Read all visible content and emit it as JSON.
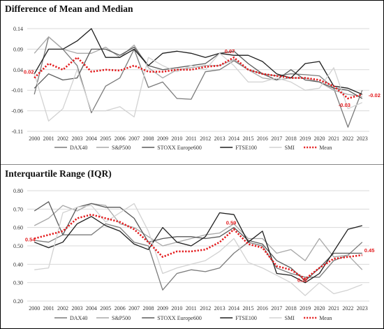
{
  "colors": {
    "DAX40": "#7b7b7b",
    "S&P500": "#a8a8a8",
    "STOXX Europe600": "#5a5a5a",
    "FTSE100": "#1e1e1e",
    "SMI": "#d2d2d2",
    "Mean": "#e31a1c"
  },
  "chart_data": [
    {
      "type": "line",
      "title": "Difference of Mean and Median",
      "x": [
        "2000",
        "2001",
        "2002",
        "2003",
        "2004",
        "2005",
        "2006",
        "2007",
        "2008",
        "2009",
        "2010",
        "2011",
        "2012",
        "2013",
        "2014",
        "2015",
        "2016",
        "2017",
        "2018",
        "2019",
        "2020",
        "2021",
        "2022",
        "2023"
      ],
      "y_ticks": [
        "0.14",
        "0.09",
        "0.04",
        "-0.01",
        "-0.06",
        "-0.11"
      ],
      "ylim": [
        -0.11,
        0.14
      ],
      "grid": true,
      "legend_position": "bottom",
      "series": [
        {
          "name": "DAX40",
          "values": [
            -0.02,
            0.12,
            0.09,
            0.05,
            -0.065,
            0.0,
            0.02,
            0.09,
            -0.003,
            0.01,
            -0.03,
            -0.032,
            0.035,
            0.04,
            0.062,
            0.04,
            0.03,
            0.025,
            0.03,
            0.028,
            0.025,
            -0.005,
            -0.1,
            -0.01
          ]
        },
        {
          "name": "S&P500",
          "values": [
            0.08,
            0.12,
            0.09,
            0.08,
            0.08,
            0.095,
            0.07,
            0.1,
            0.045,
            0.02,
            0.04,
            0.045,
            0.05,
            0.05,
            0.065,
            0.04,
            0.02,
            0.015,
            0.02,
            0.02,
            0.01,
            -0.01,
            -0.02,
            -0.025
          ]
        },
        {
          "name": "STOXX Europe600",
          "values": [
            -0.005,
            0.03,
            0.015,
            0.02,
            0.09,
            0.09,
            0.075,
            0.095,
            0.05,
            0.04,
            0.045,
            0.05,
            0.055,
            0.08,
            0.085,
            0.055,
            0.03,
            0.015,
            0.04,
            0.015,
            0.01,
            -0.005,
            -0.01,
            -0.03
          ]
        },
        {
          "name": "FTSE100",
          "values": [
            0.03,
            0.09,
            0.09,
            0.11,
            0.14,
            0.07,
            0.07,
            0.09,
            0.05,
            0.08,
            0.085,
            0.08,
            0.07,
            0.08,
            0.075,
            0.075,
            0.06,
            0.03,
            0.02,
            0.055,
            0.06,
            0.0,
            -0.005,
            -0.02
          ]
        },
        {
          "name": "SMI",
          "values": [
            0.03,
            -0.085,
            -0.055,
            0.04,
            -0.06,
            -0.06,
            -0.05,
            -0.075,
            0.07,
            0.05,
            0.035,
            0.05,
            0.04,
            0.08,
            0.05,
            0.01,
            0.01,
            0.02,
            0.01,
            -0.01,
            -0.005,
            0.045,
            -0.055,
            -0.04
          ]
        },
        {
          "name": "Mean",
          "values": [
            0.02,
            0.055,
            0.04,
            0.07,
            0.035,
            0.04,
            0.038,
            0.05,
            0.035,
            0.035,
            0.04,
            0.04,
            0.047,
            0.05,
            0.07,
            0.04,
            0.03,
            0.025,
            0.02,
            0.02,
            0.015,
            0.0,
            -0.03,
            -0.02
          ]
        }
      ],
      "annotations": [
        {
          "x": "2000",
          "y": 0.02,
          "label": "0.02"
        },
        {
          "x": "2014",
          "y": 0.07,
          "label": "0.07"
        },
        {
          "x": "2022",
          "y": -0.03,
          "label": "-0.03"
        },
        {
          "x": "2023",
          "y": -0.02,
          "label": "-0.02"
        }
      ]
    },
    {
      "type": "line",
      "title": "Interquartile Range (IQR)",
      "x": [
        "2000",
        "2001",
        "2002",
        "2003",
        "2004",
        "2005",
        "2006",
        "2007",
        "2008",
        "2009",
        "2010",
        "2011",
        "2012",
        "2013",
        "2014",
        "2015",
        "2016",
        "2017",
        "2018",
        "2019",
        "2020",
        "2021",
        "2022",
        "2023"
      ],
      "y_ticks": [
        "0.80",
        "0.70",
        "0.60",
        "0.50",
        "0.40",
        "0.30",
        "0.20"
      ],
      "ylim": [
        0.2,
        0.8
      ],
      "grid": true,
      "legend_position": "bottom",
      "series": [
        {
          "name": "DAX40",
          "values": [
            0.53,
            0.52,
            0.56,
            0.56,
            0.56,
            0.62,
            0.6,
            0.52,
            0.5,
            0.26,
            0.35,
            0.37,
            0.36,
            0.38,
            0.46,
            0.52,
            0.5,
            0.38,
            0.35,
            0.33,
            0.33,
            0.42,
            0.45,
            0.52
          ]
        },
        {
          "name": "S&P500",
          "values": [
            0.61,
            0.65,
            0.72,
            0.69,
            0.73,
            0.72,
            0.62,
            0.6,
            0.55,
            0.5,
            0.52,
            0.54,
            0.56,
            0.57,
            0.62,
            0.54,
            0.54,
            0.46,
            0.48,
            0.42,
            0.54,
            0.44,
            0.45,
            0.37
          ]
        },
        {
          "name": "STOXX Europe600",
          "values": [
            0.69,
            0.74,
            0.56,
            0.71,
            0.73,
            0.71,
            0.71,
            0.65,
            0.52,
            0.54,
            0.55,
            0.55,
            0.54,
            0.55,
            0.6,
            0.53,
            0.51,
            0.42,
            0.38,
            0.31,
            0.38,
            0.46,
            0.46,
            0.46
          ]
        },
        {
          "name": "FTSE100",
          "values": [
            0.52,
            0.49,
            0.52,
            0.62,
            0.66,
            0.61,
            0.58,
            0.51,
            0.48,
            0.6,
            0.52,
            0.5,
            0.55,
            0.68,
            0.67,
            0.52,
            0.58,
            0.35,
            0.34,
            0.3,
            0.35,
            0.47,
            0.59,
            0.61
          ]
        },
        {
          "name": "SMI",
          "values": [
            0.37,
            0.38,
            0.68,
            0.71,
            0.72,
            0.63,
            0.68,
            0.73,
            0.58,
            0.35,
            0.38,
            0.4,
            0.42,
            0.47,
            0.54,
            0.41,
            0.38,
            0.34,
            0.3,
            0.23,
            0.3,
            0.24,
            0.26,
            0.29
          ]
        },
        {
          "name": "Mean",
          "values": [
            0.54,
            0.56,
            0.58,
            0.65,
            0.67,
            0.65,
            0.63,
            0.59,
            0.52,
            0.44,
            0.47,
            0.47,
            0.48,
            0.52,
            0.59,
            0.51,
            0.49,
            0.39,
            0.37,
            0.32,
            0.38,
            0.43,
            0.44,
            0.45
          ]
        }
      ],
      "annotations": [
        {
          "x": "2000",
          "y": 0.54,
          "label": "0.54"
        },
        {
          "x": "2014",
          "y": 0.59,
          "label": "0.59"
        },
        {
          "x": "2019",
          "y": 0.32,
          "label": "0.32"
        },
        {
          "x": "2023",
          "y": 0.45,
          "label": "0.45"
        }
      ]
    }
  ]
}
